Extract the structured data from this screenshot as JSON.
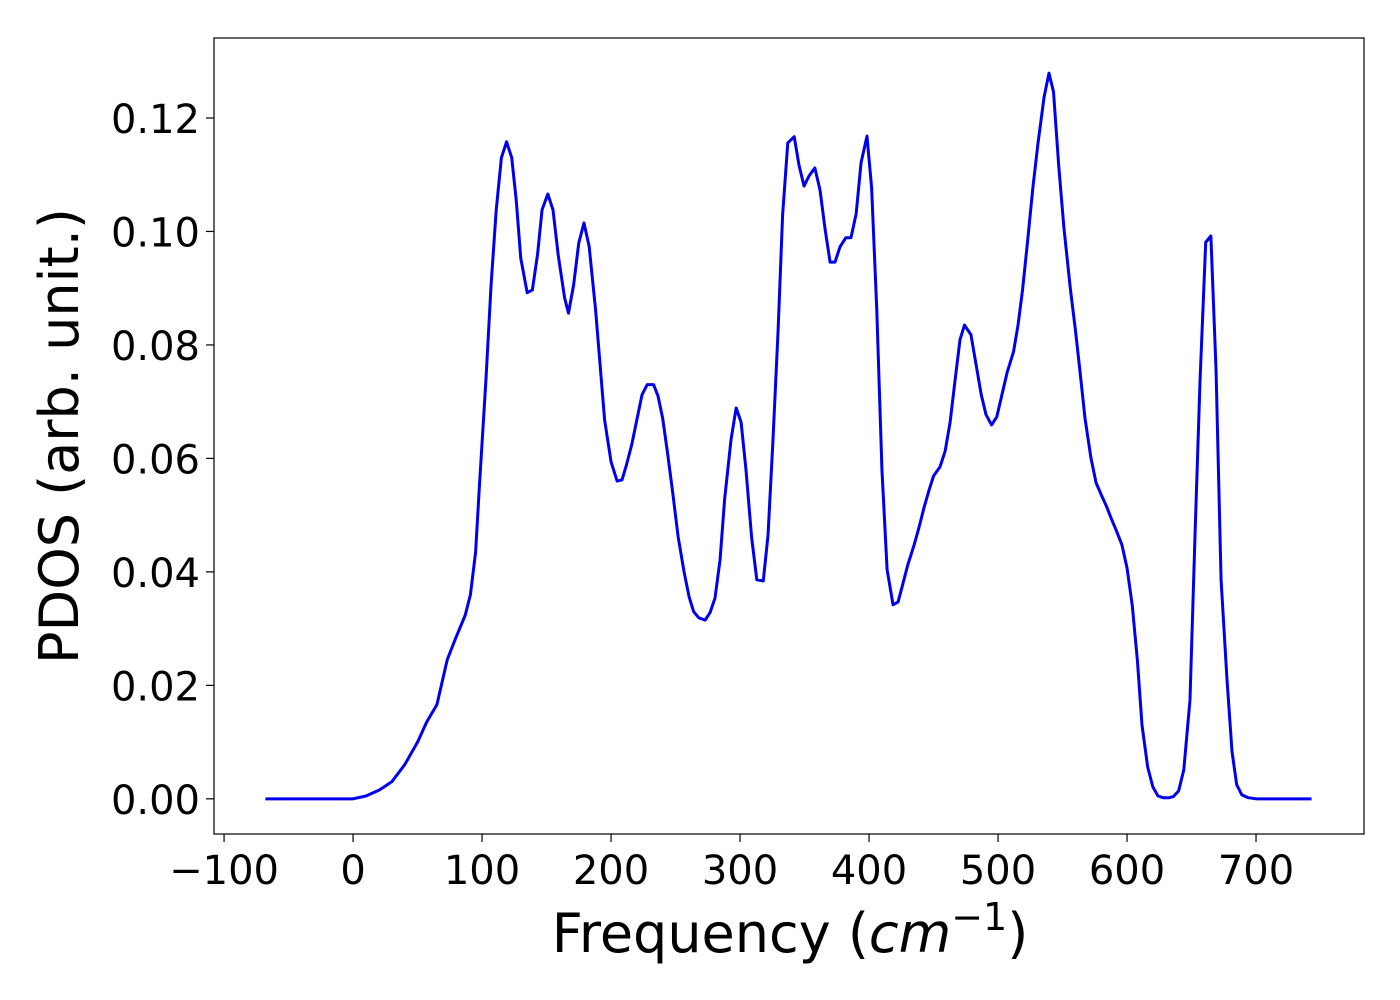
{
  "chart_data": {
    "type": "line",
    "xlabel": [
      "Frequency (",
      "cm",
      "−1",
      ")"
    ],
    "ylabel": "PDOS (arb. unit.)",
    "xlim": [
      -107.8,
      783.7
    ],
    "ylim": [
      -0.0062,
      0.1341
    ],
    "xticks": [
      {
        "value": -100,
        "label": "−100"
      },
      0,
      100,
      200,
      300,
      400,
      500,
      600,
      700
    ],
    "yticks": [
      {
        "value": 0,
        "label": "0.00"
      },
      {
        "value": 0.02,
        "label": "0.02"
      },
      {
        "value": 0.04,
        "label": "0.04"
      },
      {
        "value": 0.06,
        "label": "0.06"
      },
      {
        "value": 0.08,
        "label": "0.08"
      },
      {
        "value": 0.1,
        "label": "0.10"
      },
      {
        "value": 0.12,
        "label": "0.12"
      }
    ],
    "grid": false,
    "series": [
      {
        "color": "#0000ee",
        "x": [
          -68,
          0,
          10,
          20,
          30,
          40,
          50,
          57,
          65,
          73,
          79,
          87,
          91,
          95,
          98,
          103,
          107,
          111,
          115,
          119,
          123,
          126.5,
          130,
          135,
          139,
          143,
          146.5,
          151,
          155,
          159,
          164,
          167,
          171,
          175,
          179,
          183,
          188,
          191.5,
          195,
          200,
          204.7,
          208.5,
          212,
          216,
          220,
          224,
          228,
          233,
          236.4,
          240,
          244,
          248,
          252,
          256.6,
          260.5,
          264,
          268,
          273,
          276.7,
          280.6,
          284.5,
          288,
          293,
          297,
          300.8,
          304.6,
          309,
          313,
          318,
          321.7,
          325.6,
          329.5,
          333,
          337,
          342,
          345.7,
          349.6,
          353.5,
          358,
          362,
          366,
          369.8,
          373.6,
          377.5,
          382,
          386,
          390,
          393.8,
          398.4,
          402,
          406,
          410,
          414,
          418.6,
          422.5,
          426,
          430,
          435,
          438.8,
          442.6,
          446.5,
          450,
          455,
          459,
          462.8,
          466.7,
          470.5,
          474,
          479,
          483,
          487,
          490.7,
          495,
          499,
          503,
          507,
          512,
          515.5,
          519,
          523,
          527,
          531,
          535.7,
          539.5,
          543,
          547,
          551,
          556,
          560,
          563.6,
          567.4,
          572,
          576,
          580,
          584,
          587.6,
          591.5,
          596,
          600,
          604,
          608,
          611.6,
          616,
          620,
          624,
          628,
          632.6,
          636,
          640,
          644,
          648.8,
          652.7,
          656.6,
          661,
          665,
          669,
          672.9,
          677.5,
          681.4,
          685,
          689,
          694,
          700,
          743
        ],
        "values": [
          0,
          0,
          0.0005,
          0.0015,
          0.003,
          0.006,
          0.01,
          0.0135,
          0.0166,
          0.0245,
          0.028,
          0.0324,
          0.036,
          0.0435,
          0.0553,
          0.0738,
          0.0906,
          0.1038,
          0.113,
          0.1158,
          0.113,
          0.1055,
          0.0953,
          0.0892,
          0.0897,
          0.0959,
          0.1038,
          0.1066,
          0.1038,
          0.0959,
          0.0883,
          0.0856,
          0.0906,
          0.098,
          0.1015,
          0.0974,
          0.0862,
          0.0765,
          0.0668,
          0.0594,
          0.056,
          0.0562,
          0.0589,
          0.0624,
          0.0668,
          0.0712,
          0.073,
          0.073,
          0.071,
          0.0671,
          0.0606,
          0.0536,
          0.0462,
          0.04,
          0.0356,
          0.033,
          0.0319,
          0.0315,
          0.0328,
          0.0354,
          0.0421,
          0.0527,
          0.0633,
          0.0689,
          0.0664,
          0.058,
          0.046,
          0.0386,
          0.0384,
          0.0465,
          0.0636,
          0.0826,
          0.1029,
          0.1156,
          0.1167,
          0.1117,
          0.108,
          0.1098,
          0.1112,
          0.1073,
          0.1003,
          0.0946,
          0.0946,
          0.0973,
          0.0989,
          0.0989,
          0.1031,
          0.1121,
          0.1168,
          0.1077,
          0.0862,
          0.058,
          0.0404,
          0.0342,
          0.0347,
          0.0377,
          0.0412,
          0.0448,
          0.0479,
          0.0513,
          0.0544,
          0.0569,
          0.0585,
          0.0613,
          0.0663,
          0.0738,
          0.0809,
          0.0835,
          0.0818,
          0.0765,
          0.0712,
          0.0677,
          0.0659,
          0.0673,
          0.0712,
          0.0751,
          0.0788,
          0.0835,
          0.0897,
          0.0985,
          0.1077,
          0.1156,
          0.1237,
          0.1279,
          0.1246,
          0.1117,
          0.1008,
          0.09,
          0.0826,
          0.0752,
          0.0671,
          0.0601,
          0.0557,
          0.0536,
          0.0516,
          0.0495,
          0.0474,
          0.0448,
          0.0407,
          0.0342,
          0.0245,
          0.013,
          0.0056,
          0.0021,
          0.0005,
          0.0002,
          0.0002,
          0.0004,
          0.0014,
          0.0051,
          0.0174,
          0.0465,
          0.0738,
          0.0981,
          0.0992,
          0.0756,
          0.0386,
          0.021,
          0.0083,
          0.0025,
          0.0007,
          0.0002,
          0,
          0
        ]
      }
    ]
  }
}
